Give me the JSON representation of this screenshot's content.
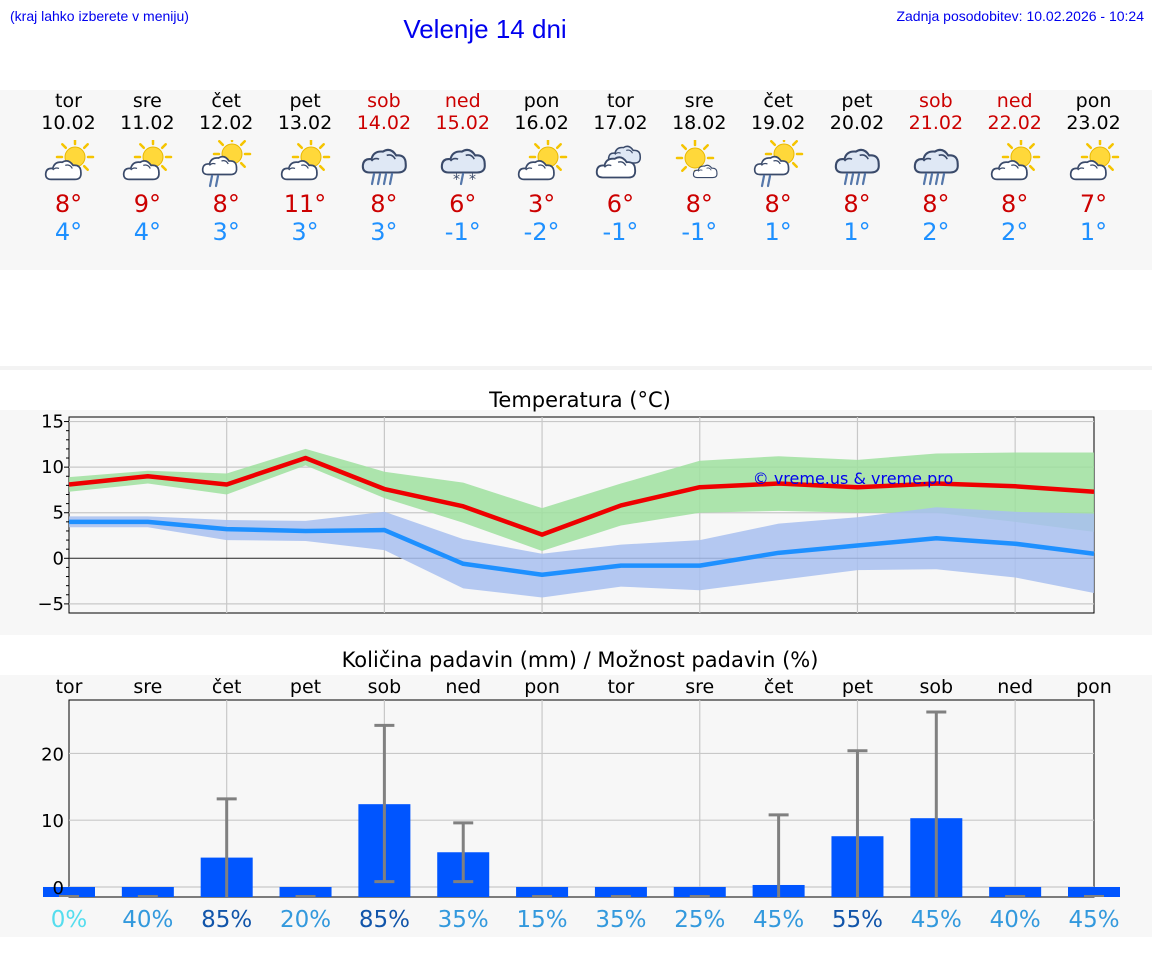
{
  "header": {
    "hint": "(kraj lahko izberete v meniju)",
    "title": "Velenje 14 dni",
    "updated": "Zadnja posodobitev: 10.02.2026 - 10:24"
  },
  "forecast": [
    {
      "day": "tor",
      "date": "10.02",
      "weekend": false,
      "icon": "sun-cloud-icon",
      "tmax": "8°",
      "tmin": "4°"
    },
    {
      "day": "sre",
      "date": "11.02",
      "weekend": false,
      "icon": "sun-cloud-icon",
      "tmax": "9°",
      "tmin": "4°"
    },
    {
      "day": "čet",
      "date": "12.02",
      "weekend": false,
      "icon": "sun-cloud-light-rain-icon",
      "tmax": "8°",
      "tmin": "3°"
    },
    {
      "day": "pet",
      "date": "13.02",
      "weekend": false,
      "icon": "sun-cloud-icon",
      "tmax": "11°",
      "tmin": "3°"
    },
    {
      "day": "sob",
      "date": "14.02",
      "weekend": true,
      "icon": "cloud-rain-icon",
      "tmax": "8°",
      "tmin": "3°"
    },
    {
      "day": "ned",
      "date": "15.02",
      "weekend": true,
      "icon": "cloud-sleet-icon",
      "tmax": "6°",
      "tmin": "-1°"
    },
    {
      "day": "pon",
      "date": "16.02",
      "weekend": false,
      "icon": "sun-cloud-icon",
      "tmax": "3°",
      "tmin": "-2°"
    },
    {
      "day": "tor",
      "date": "17.02",
      "weekend": false,
      "icon": "cloudy-icon",
      "tmax": "6°",
      "tmin": "-1°"
    },
    {
      "day": "sre",
      "date": "18.02",
      "weekend": false,
      "icon": "sun-small-cloud-icon",
      "tmax": "8°",
      "tmin": "-1°"
    },
    {
      "day": "čet",
      "date": "19.02",
      "weekend": false,
      "icon": "sun-cloud-light-rain-icon",
      "tmax": "8°",
      "tmin": "1°"
    },
    {
      "day": "pet",
      "date": "20.02",
      "weekend": false,
      "icon": "cloud-rain-icon",
      "tmax": "8°",
      "tmin": "1°"
    },
    {
      "day": "sob",
      "date": "21.02",
      "weekend": true,
      "icon": "cloud-rain-icon",
      "tmax": "8°",
      "tmin": "2°"
    },
    {
      "day": "ned",
      "date": "22.02",
      "weekend": true,
      "icon": "sun-cloud-icon",
      "tmax": "8°",
      "tmin": "2°"
    },
    {
      "day": "pon",
      "date": "23.02",
      "weekend": false,
      "icon": "sun-cloud-icon",
      "tmax": "7°",
      "tmin": "1°"
    }
  ],
  "chart_data": [
    {
      "type": "line",
      "title": "Temperatura (°C)",
      "ylim": [
        -6,
        15.5
      ],
      "yticks": [
        15,
        10,
        5,
        0,
        -5
      ],
      "ytick_labels": [
        "15",
        "10",
        "5",
        "0",
        "−5"
      ],
      "watermark": "© vreme.us & vreme.pro",
      "x": [
        0,
        1,
        2,
        3,
        4,
        5,
        6,
        7,
        8,
        9,
        10,
        11,
        12,
        13
      ],
      "series": [
        {
          "name": "max",
          "color": "#ee0000",
          "values": [
            8.1,
            9.0,
            8.1,
            11.0,
            7.6,
            5.7,
            2.6,
            5.8,
            7.8,
            8.2,
            7.8,
            8.2,
            7.9,
            7.3
          ]
        },
        {
          "name": "min",
          "color": "#1e90ff",
          "values": [
            4.0,
            4.0,
            3.2,
            3.0,
            3.1,
            -0.6,
            -1.8,
            -0.8,
            -0.8,
            0.6,
            1.4,
            2.2,
            1.6,
            0.5
          ]
        }
      ],
      "bands": [
        {
          "name": "max-range",
          "color": "#9fe09f",
          "low": [
            7.3,
            8.2,
            7.0,
            10.2,
            6.6,
            3.9,
            0.8,
            3.6,
            5.0,
            5.2,
            5.0,
            5.0,
            4.0,
            2.9
          ],
          "high": [
            8.9,
            9.6,
            9.3,
            12.0,
            9.5,
            8.3,
            5.5,
            8.2,
            10.7,
            11.2,
            10.8,
            11.5,
            11.6,
            11.6
          ]
        },
        {
          "name": "min-range",
          "color": "#a8c0f0",
          "low": [
            3.4,
            3.4,
            2.0,
            1.9,
            0.9,
            -3.3,
            -4.3,
            -3.1,
            -3.5,
            -2.4,
            -1.3,
            -1.2,
            -2.1,
            -3.8
          ],
          "high": [
            4.6,
            4.6,
            4.2,
            4.1,
            5.1,
            2.1,
            0.5,
            1.5,
            2.0,
            3.8,
            4.5,
            5.6,
            5.1,
            4.9
          ]
        }
      ]
    },
    {
      "type": "bar",
      "title": "Količina padavin (mm) / Možnost padavin (%)",
      "categories": [
        "tor",
        "sre",
        "čet",
        "pet",
        "sob",
        "ned",
        "pon",
        "tor",
        "sre",
        "čet",
        "pet",
        "sob",
        "ned",
        "pon"
      ],
      "ylim": [
        -1.5,
        28
      ],
      "yticks": [
        20,
        10,
        0
      ],
      "ytick_labels": [
        "20",
        "10",
        "0"
      ],
      "values": [
        0,
        0,
        4.4,
        0,
        12.4,
        5.2,
        0,
        0,
        0,
        0.3,
        7.6,
        10.3,
        0,
        0
      ],
      "error_low": [
        0,
        0,
        0,
        0,
        0.8,
        0.8,
        0,
        0,
        0,
        0,
        0,
        0,
        0,
        0
      ],
      "error_high": [
        0,
        0,
        13.2,
        0,
        24.2,
        9.6,
        0,
        0,
        0,
        10.8,
        20.4,
        26.2,
        0,
        0
      ],
      "bar_color": "#0055ff",
      "chance": [
        "0%",
        "40%",
        "85%",
        "20%",
        "85%",
        "35%",
        "15%",
        "35%",
        "25%",
        "45%",
        "55%",
        "45%",
        "40%",
        "45%"
      ],
      "chance_colors": [
        "#55ddee",
        "#3399dd",
        "#1155aa",
        "#3399dd",
        "#1155aa",
        "#3399dd",
        "#3399dd",
        "#3399dd",
        "#3399dd",
        "#3399dd",
        "#1155aa",
        "#3399dd",
        "#3399dd",
        "#3399dd"
      ]
    }
  ]
}
